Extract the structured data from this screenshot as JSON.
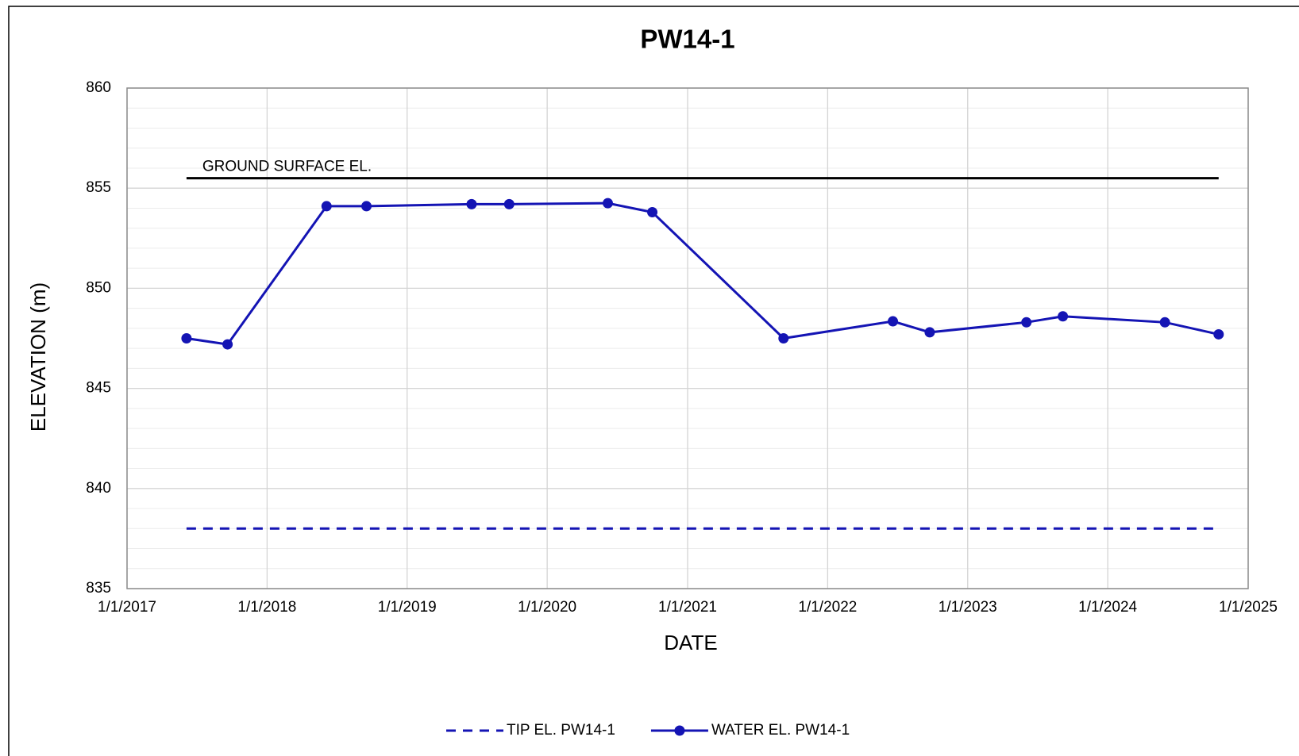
{
  "chart_data": {
    "type": "line",
    "title": "PW14-1",
    "xlabel": "DATE",
    "ylabel": "ELEVATION (m)",
    "xlim": [
      "2017-01-01",
      "2025-01-01"
    ],
    "xticks": [
      {
        "value": "2017-01-01",
        "label": "1/1/2017"
      },
      {
        "value": "2018-01-01",
        "label": "1/1/2018"
      },
      {
        "value": "2019-01-01",
        "label": "1/1/2019"
      },
      {
        "value": "2020-01-01",
        "label": "1/1/2020"
      },
      {
        "value": "2021-01-01",
        "label": "1/1/2021"
      },
      {
        "value": "2022-01-01",
        "label": "1/1/2022"
      },
      {
        "value": "2023-01-01",
        "label": "1/1/2023"
      },
      {
        "value": "2024-01-01",
        "label": "1/1/2024"
      },
      {
        "value": "2025-01-01",
        "label": "1/1/2025"
      }
    ],
    "ylim": [
      835,
      860
    ],
    "yticks": [
      835,
      840,
      845,
      850,
      855,
      860
    ],
    "yminorticks": [
      836,
      837,
      838,
      839,
      841,
      842,
      843,
      844,
      846,
      847,
      848,
      849,
      851,
      852,
      853,
      854,
      856,
      857,
      858,
      859
    ],
    "grid": true,
    "legend": "bottom",
    "reference_line": {
      "label": "GROUND SURFACE EL.",
      "color": "#000000",
      "x": [
        "2017-06-05",
        "2024-10-16"
      ],
      "values": [
        855.5,
        855.5
      ]
    },
    "series": [
      {
        "name": "TIP EL. PW14-1",
        "color": "#1414b4",
        "dashed": true,
        "markers": false,
        "x": [
          "2017-06-05",
          "2024-10-16"
        ],
        "values": [
          838,
          838
        ]
      },
      {
        "name": "WATER EL. PW14-1",
        "color": "#1414b4",
        "dashed": false,
        "markers": true,
        "x": [
          "2017-06-05",
          "2017-09-20",
          "2018-06-05",
          "2018-09-17",
          "2019-06-18",
          "2019-09-24",
          "2020-06-07",
          "2020-10-01",
          "2021-09-08",
          "2022-06-20",
          "2022-09-24",
          "2023-06-03",
          "2023-09-06",
          "2024-05-29",
          "2024-10-16"
        ],
        "values": [
          847.5,
          847.2,
          854.1,
          854.1,
          854.2,
          854.2,
          854.25,
          853.8,
          847.5,
          848.35,
          847.8,
          848.3,
          848.6,
          848.3,
          847.7
        ]
      }
    ]
  }
}
